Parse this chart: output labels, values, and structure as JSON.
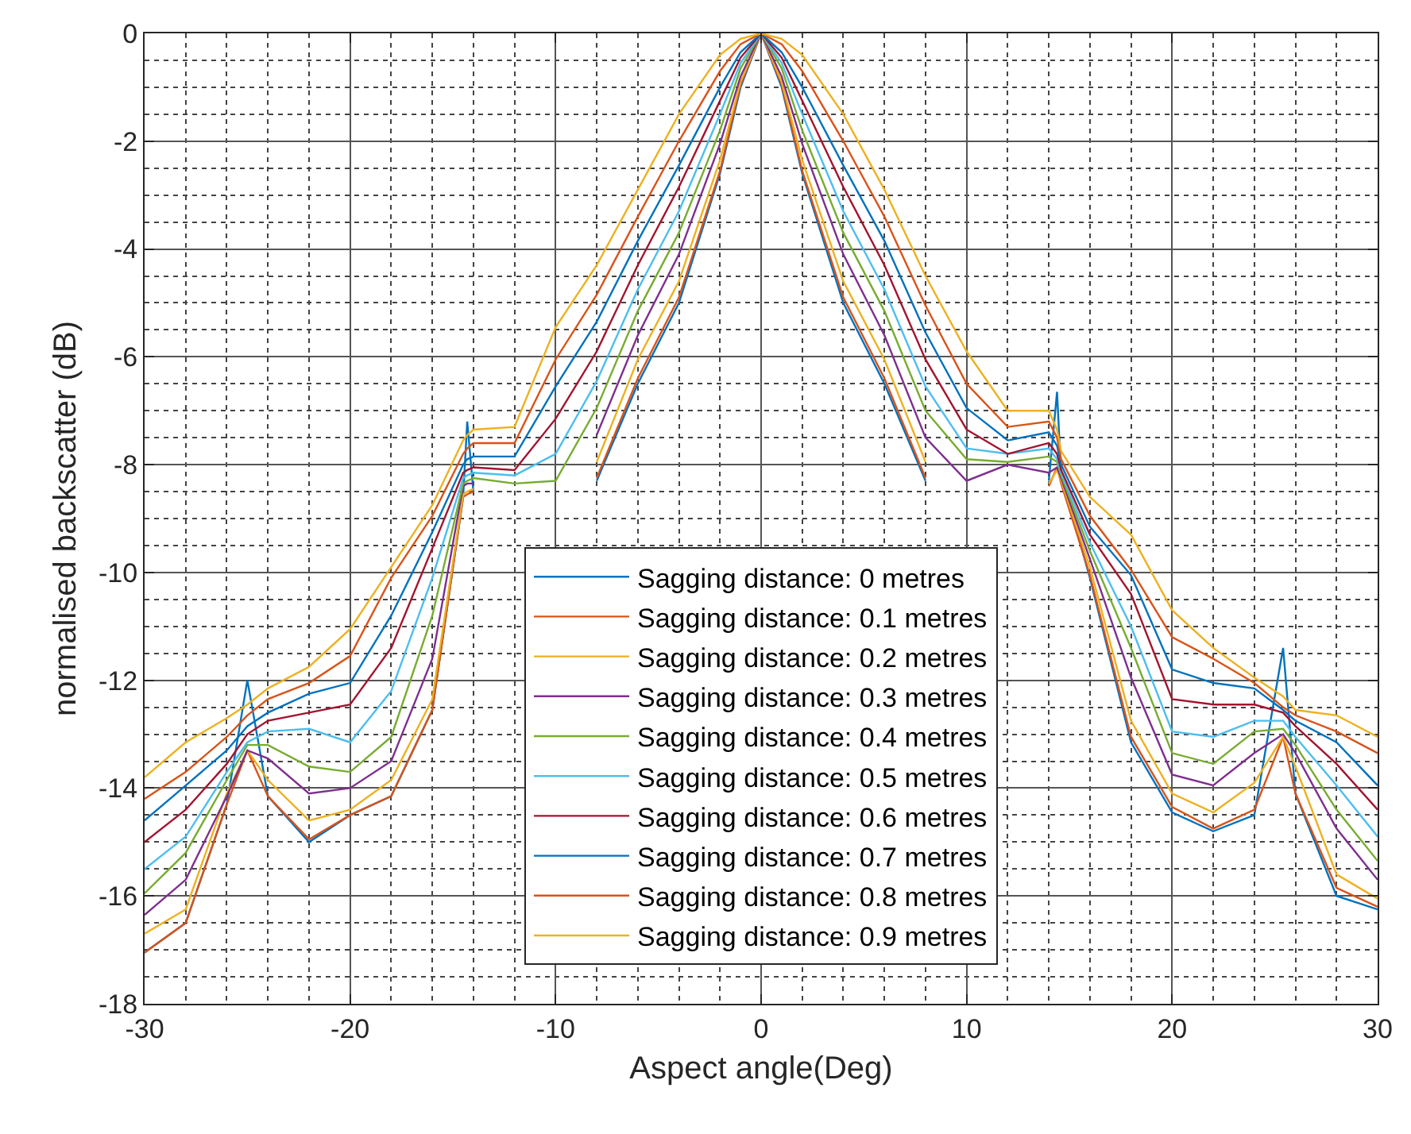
{
  "chart_data": {
    "type": "line",
    "xlabel": "Aspect angle(Deg)",
    "ylabel": "normalised backscatter (dB)",
    "x": [
      -30,
      -28,
      -26,
      -25,
      -24,
      -22,
      -20,
      -18,
      -16,
      -14.5,
      -14.3,
      -14,
      -12,
      -10,
      -8,
      -6,
      -4,
      -2,
      -1,
      0,
      1,
      2,
      4,
      6,
      8,
      10,
      12,
      14,
      14.4,
      14.6,
      16,
      18,
      20,
      22,
      24,
      25.4,
      26,
      28,
      30
    ],
    "xlim": [
      -30,
      30
    ],
    "xticks": [
      -30,
      -20,
      -10,
      0,
      10,
      20,
      30
    ],
    "ylim": [
      -18,
      0
    ],
    "yticks": [
      -18,
      -16,
      -14,
      -12,
      -10,
      -8,
      -6,
      -4,
      -2,
      0
    ],
    "grid": true,
    "legend": "bottom",
    "line_style": "solid",
    "marker": "none",
    "series": [
      {
        "name": "Sagging distance: 0 metres",
        "color": "#0072bd",
        "values": [
          -17.05,
          -16.5,
          -14.3,
          -12.0,
          -14.15,
          -15.0,
          -14.5,
          -14.15,
          -12.55,
          -8.6,
          -7.2,
          -8.5,
          null,
          null,
          -8.3,
          -6.5,
          -5.0,
          -2.6,
          -1.0,
          0,
          -1.0,
          -2.6,
          -5.0,
          -6.5,
          -8.3,
          null,
          null,
          -8.3,
          -6.65,
          -8.2,
          -10.1,
          -13.15,
          -14.45,
          -14.8,
          -14.5,
          -11.4,
          -14.1,
          -16.0,
          -16.25
        ]
      },
      {
        "name": "Sagging distance: 0.1 metres",
        "color": "#d95319",
        "values": [
          -17.05,
          -16.5,
          -14.3,
          -13.3,
          -14.15,
          -14.95,
          -14.5,
          -14.15,
          -12.55,
          -8.6,
          -8.55,
          -8.5,
          null,
          null,
          -8.25,
          -6.4,
          -4.9,
          -2.55,
          -0.95,
          0,
          -0.95,
          -2.55,
          -4.9,
          -6.4,
          -8.25,
          null,
          null,
          -8.4,
          -8.05,
          -8.35,
          -10.05,
          -13.05,
          -14.35,
          -14.75,
          -14.4,
          -13.05,
          -14.1,
          -15.85,
          -16.2
        ]
      },
      {
        "name": "Sagging distance: 0.2 metres",
        "color": "#edb120",
        "values": [
          -16.7,
          -16.25,
          -14.1,
          -13.3,
          -13.85,
          -14.6,
          -14.4,
          -13.85,
          -12.35,
          -8.55,
          -8.5,
          -8.45,
          null,
          null,
          -7.95,
          -6.05,
          -4.6,
          -2.35,
          -0.9,
          0,
          -0.9,
          -2.35,
          -4.6,
          -6.05,
          -7.95,
          null,
          null,
          -8.35,
          -8.1,
          -8.3,
          -9.9,
          -12.75,
          -14.1,
          -14.45,
          -13.9,
          -13.05,
          -13.6,
          -15.6,
          -16.05
        ]
      },
      {
        "name": "Sagging distance: 0.3 metres",
        "color": "#7e2f8e",
        "values": [
          -16.35,
          -15.7,
          -14.15,
          -13.3,
          -13.45,
          -14.1,
          -14.0,
          -13.5,
          -11.6,
          -8.4,
          -8.35,
          -8.35,
          null,
          null,
          -7.45,
          -5.6,
          -4.1,
          -2.05,
          -0.8,
          0,
          -0.8,
          -2.05,
          -4.1,
          -5.6,
          -7.5,
          -8.3,
          -8.0,
          -8.15,
          -8.05,
          -8.25,
          -9.75,
          -11.95,
          -13.75,
          -13.95,
          -13.35,
          -13.0,
          -13.35,
          -14.75,
          -15.7
        ]
      },
      {
        "name": "Sagging distance: 0.4 metres",
        "color": "#77ac30",
        "values": [
          -15.95,
          -15.2,
          -13.85,
          -13.2,
          -13.2,
          -13.6,
          -13.7,
          -13.05,
          -10.8,
          -8.35,
          -8.3,
          -8.25,
          -8.35,
          -8.3,
          -6.95,
          -5.15,
          -3.7,
          -1.8,
          -0.65,
          0,
          -0.65,
          -1.8,
          -3.7,
          -5.15,
          -7.0,
          -7.9,
          -7.95,
          -7.85,
          -7.95,
          -8.2,
          -9.6,
          -11.4,
          -13.35,
          -13.55,
          -12.95,
          -12.9,
          -13.2,
          -14.4,
          -15.35
        ]
      },
      {
        "name": "Sagging distance: 0.5 metres",
        "color": "#4dbeee",
        "values": [
          -15.5,
          -14.9,
          -13.7,
          -13.15,
          -12.95,
          -12.9,
          -13.15,
          -12.2,
          -10.1,
          -8.25,
          -8.2,
          -8.15,
          -8.2,
          -7.8,
          -6.45,
          -4.75,
          -3.3,
          -1.5,
          -0.55,
          0,
          -0.55,
          -1.5,
          -3.3,
          -4.75,
          -6.55,
          -7.7,
          -7.8,
          -7.7,
          -7.9,
          -8.15,
          -9.45,
          -11.0,
          -12.95,
          -13.05,
          -12.75,
          -12.75,
          -13.05,
          -13.95,
          -14.9
        ]
      },
      {
        "name": "Sagging distance: 0.6 metres",
        "color": "#a2142f",
        "values": [
          -15.0,
          -14.4,
          -13.55,
          -13.0,
          -12.75,
          -12.6,
          -12.45,
          -11.4,
          -9.55,
          -8.15,
          -8.1,
          -8.05,
          -8.1,
          -7.15,
          -5.9,
          -4.3,
          -2.85,
          -1.25,
          -0.45,
          0,
          -0.45,
          -1.25,
          -2.85,
          -4.3,
          -6.05,
          -7.35,
          -7.8,
          -7.6,
          -7.8,
          -8.1,
          -9.3,
          -10.4,
          -12.35,
          -12.45,
          -12.45,
          -12.6,
          -12.85,
          -13.55,
          -14.4
        ]
      },
      {
        "name": "Sagging distance: 0.7 metres",
        "color": "#0072bd",
        "values": [
          -14.6,
          -13.95,
          -13.3,
          -12.85,
          -12.6,
          -12.25,
          -12.05,
          -10.8,
          -9.25,
          -8.0,
          -7.9,
          -7.85,
          -7.85,
          -6.55,
          -5.35,
          -3.85,
          -2.45,
          -1.0,
          -0.35,
          0,
          -0.35,
          -1.0,
          -2.45,
          -3.85,
          -5.55,
          -6.95,
          -7.55,
          -7.4,
          -7.65,
          -8.0,
          -9.15,
          -10.05,
          -11.8,
          -12.05,
          -12.15,
          -12.55,
          -12.75,
          -13.15,
          -13.95
        ]
      },
      {
        "name": "Sagging distance: 0.8 metres",
        "color": "#d95319",
        "values": [
          -14.2,
          -13.7,
          -13.05,
          -12.65,
          -12.35,
          -12.05,
          -11.55,
          -10.1,
          -8.95,
          -7.8,
          -7.7,
          -7.6,
          -7.6,
          -6.05,
          -4.85,
          -3.4,
          -2.0,
          -0.7,
          -0.2,
          0,
          -0.2,
          -0.7,
          -2.0,
          -3.4,
          -5.05,
          -6.5,
          -7.3,
          -7.2,
          -7.5,
          -7.9,
          -8.95,
          -9.95,
          -11.2,
          -11.6,
          -12.05,
          -12.5,
          -12.65,
          -12.95,
          -13.35
        ]
      },
      {
        "name": "Sagging distance: 0.9 metres",
        "color": "#edb120",
        "values": [
          -13.8,
          -13.15,
          -12.7,
          -12.45,
          -12.15,
          -11.75,
          -11.05,
          -9.9,
          -8.75,
          -7.55,
          -7.45,
          -7.35,
          -7.3,
          -5.45,
          -4.3,
          -2.9,
          -1.5,
          -0.4,
          -0.1,
          0,
          -0.1,
          -0.4,
          -1.5,
          -2.9,
          -4.5,
          -5.9,
          -7.0,
          -7.0,
          -7.35,
          -7.75,
          -8.6,
          -9.3,
          -10.7,
          -11.4,
          -11.95,
          -12.3,
          -12.55,
          -12.65,
          -13.05
        ]
      }
    ]
  }
}
